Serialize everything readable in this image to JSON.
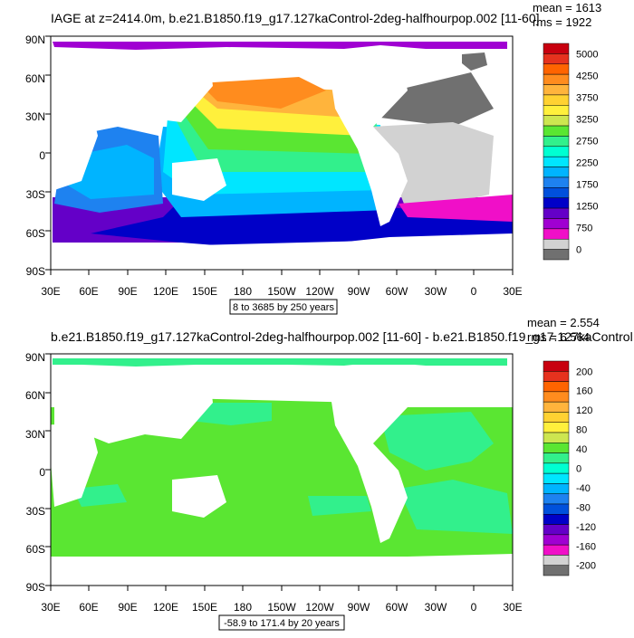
{
  "panels": [
    {
      "title": "IAGE at z=2414.0m, b.e21.B1850.f19_g17.127kaControl-2deg-halfhourpop.002 [11-60]",
      "mean_text": "mean = 1613",
      "rms_text": "rms = 1922",
      "range_text": "8 to 3685 by 250 years",
      "colorbar_labels": [
        "5000",
        "4250",
        "3750",
        "3250",
        "2750",
        "2250",
        "1750",
        "1250",
        "750",
        "0"
      ],
      "colorbar_colors": [
        "#c8000f",
        "#e6321e",
        "#ff6400",
        "#ff8c1e",
        "#ffb43c",
        "#ffd232",
        "#fff03c",
        "#cde650",
        "#5ae632",
        "#32f08c",
        "#00ffd2",
        "#00e6ff",
        "#00b4ff",
        "#1e82f0",
        "#0050dc",
        "#0000c8",
        "#6400c8",
        "#a000d2",
        "#f00fc8",
        "#d2d2d2",
        "#707070"
      ]
    },
    {
      "title": "b.e21.B1850.f19_g17.127kaControl-2deg-halfhourpop.002 [11-60] - b.e21.B1850.f19_g17.127kaControl",
      "mean_text": "mean = 2.554",
      "rms_text": "rms = 6.564",
      "range_text": "-58.9 to 171.4 by 20 years",
      "colorbar_labels": [
        "200",
        "160",
        "120",
        "80",
        "40",
        "0",
        "-40",
        "-80",
        "-120",
        "-160",
        "-200"
      ],
      "colorbar_colors": [
        "#c8000f",
        "#e6321e",
        "#ff6400",
        "#ff8c1e",
        "#ffb43c",
        "#ffd232",
        "#fff03c",
        "#cde650",
        "#5ae632",
        "#32f08c",
        "#00ffd2",
        "#00e6ff",
        "#00b4ff",
        "#1e82f0",
        "#0050dc",
        "#0000c8",
        "#6400c8",
        "#a000d2",
        "#f00fc8",
        "#d2d2d2",
        "#707070"
      ]
    }
  ],
  "lat_labels": [
    "90N",
    "60N",
    "30N",
    "0",
    "30S",
    "60S",
    "90S"
  ],
  "lon_labels": [
    "30E",
    "60E",
    "90E",
    "120E",
    "150E",
    "180",
    "150W",
    "120W",
    "90W",
    "60W",
    "30W",
    "0",
    "30E"
  ]
}
